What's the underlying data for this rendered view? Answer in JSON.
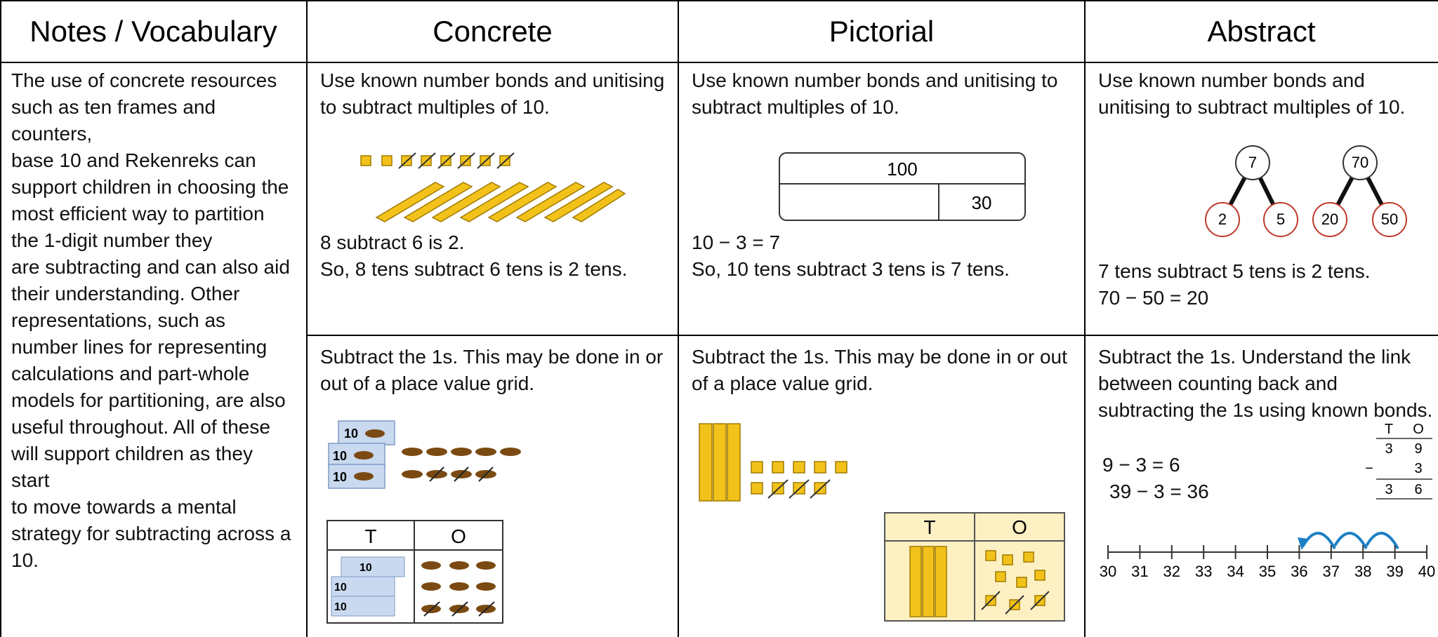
{
  "header": [
    "Notes / Vocabulary",
    "Concrete",
    "Pictorial",
    "Abstract"
  ],
  "notes": [
    "The use of concrete resources such as ten frames and counters,",
    "base 10 and Rekenreks can support children in choosing the most efficient way to partition the 1-digit number they",
    "are subtracting and can also aid their understanding. Other representations, such as number lines for representing calculations and part-whole models for partitioning, are also",
    "useful throughout. All of these will support children as they start",
    "to move towards a mental strategy for subtracting across a 10."
  ],
  "rows": [
    {
      "concrete": {
        "intro": "Use known number bonds and unitising to subtract multiples of 10.",
        "lines": [
          "8 subtract 6 is 2.",
          "So, 8 tens subtract 6 tens is 2 tens."
        ]
      },
      "pictorial": {
        "intro": "Use known number bonds and unitising to subtract multiples of 10.",
        "bar_model": {
          "whole": "100",
          "part": "30"
        },
        "lines": [
          "10 − 3 = 7",
          "So, 10 tens subtract 3 tens is 7 tens."
        ]
      },
      "abstract": {
        "intro": "Use known number bonds and unitising to subtract multiples of 10.",
        "part_whole": [
          {
            "whole": "7",
            "parts": [
              "2",
              "5"
            ]
          },
          {
            "whole": "70",
            "parts": [
              "20",
              "50"
            ]
          }
        ],
        "lines": [
          "7 tens subtract 5 tens is 2 tens.",
          "70 − 50 = 20"
        ]
      }
    },
    {
      "concrete": {
        "intro": "Subtract the 1s. This may be done in or out of a place value grid.",
        "rod_label": "10",
        "place_value": [
          "T",
          "O"
        ]
      },
      "pictorial": {
        "intro": "Subtract the 1s. This may be done in or out of a place value grid.",
        "place_value": [
          "T",
          "O"
        ]
      },
      "abstract": {
        "intro": "Subtract the 1s. Understand the link between counting back and subtracting the 1s using known bonds.",
        "lines": [
          "9 − 3 = 6",
          "39 − 3 = 36"
        ],
        "column": {
          "headers": [
            "T",
            "O"
          ],
          "top": [
            "3",
            "9"
          ],
          "sign": "−",
          "subtrahend": "3",
          "result": [
            "3",
            "6"
          ]
        },
        "number_line": [
          "30",
          "31",
          "32",
          "33",
          "34",
          "35",
          "36",
          "37",
          "38",
          "39",
          "40"
        ]
      }
    }
  ]
}
